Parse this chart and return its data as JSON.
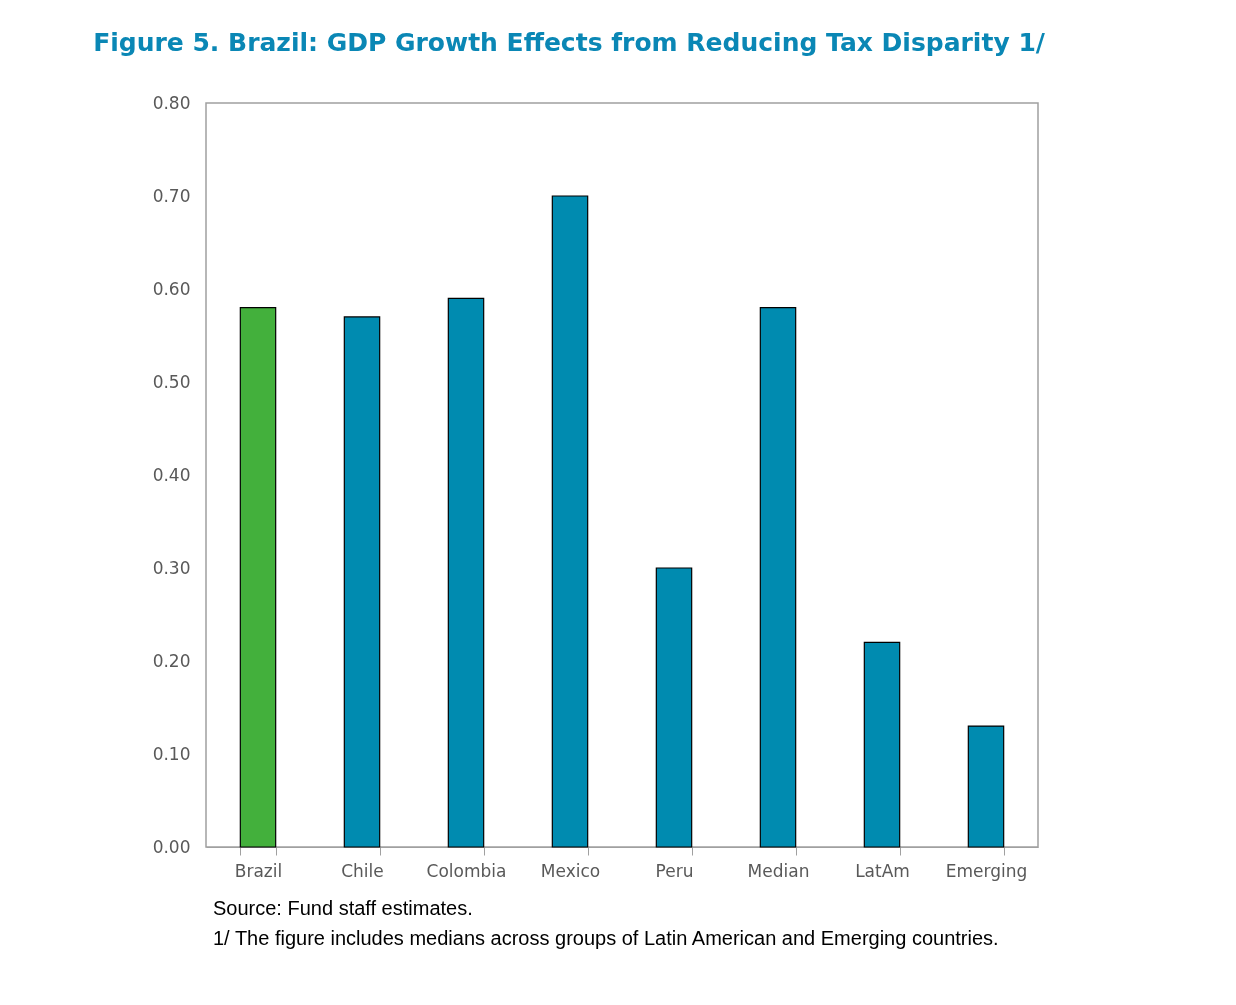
{
  "chart_data": {
    "type": "bar",
    "title": "Figure 5.  Brazil: GDP Growth Effects from Reducing Tax Disparity 1/",
    "categories": [
      "Brazil",
      "Chile",
      "Colombia",
      "Mexico",
      "Peru",
      "Median",
      "LatAm",
      "Emerging"
    ],
    "values": [
      0.58,
      0.57,
      0.59,
      0.7,
      0.3,
      0.58,
      0.22,
      0.13
    ],
    "colors": [
      "#43b03c",
      "#008bb0",
      "#008bb0",
      "#008bb0",
      "#008bb0",
      "#008bb0",
      "#008bb0",
      "#008bb0"
    ],
    "ylim": [
      0,
      0.8
    ],
    "yticks": [
      {
        "value": 0,
        "label": "0.00"
      },
      {
        "value": 0.1,
        "label": "0.10"
      },
      {
        "value": 0.2,
        "label": "0.20"
      },
      {
        "value": 0.3,
        "label": "0.30"
      },
      {
        "value": 0.4,
        "label": "0.40"
      },
      {
        "value": 0.5,
        "label": "0.50"
      },
      {
        "value": 0.6,
        "label": "0.60"
      },
      {
        "value": 0.7,
        "label": "0.70"
      },
      {
        "value": 0.8,
        "label": "0.80"
      }
    ],
    "grid": false,
    "legend": false,
    "annotations": [
      "Source: Fund staff estimates.",
      "1/ The figure includes medians across groups of Latin American and Emerging countries."
    ]
  }
}
